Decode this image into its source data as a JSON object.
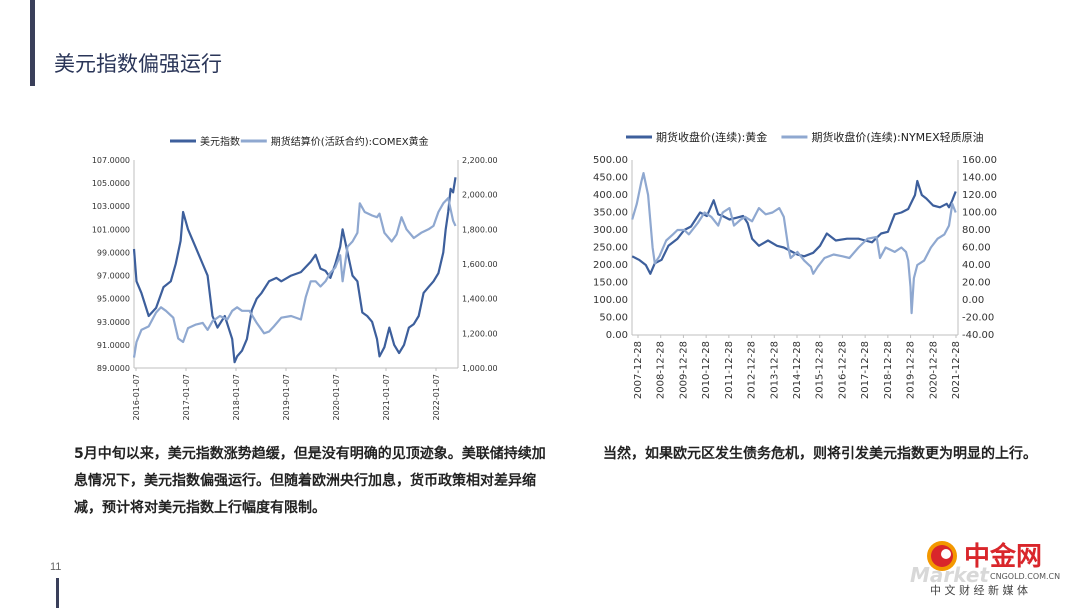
{
  "slide": {
    "title": "美元指数偏强运行",
    "page_number": "11",
    "paragraph_left": "5月中旬以来，美元指数涨势趋缓，但是没有明确的见顶迹象。美联储持续加息情况下，美元指数偏强运行。但随着欧洲央行加息，货币政策相对差异缩减，预计将对美元指数上行幅度有限制。",
    "paragraph_right": "当然，如果欧元区发生债务危机，则将引发美元指数更为明显的上行。"
  },
  "logo": {
    "text_main": "中金网",
    "text_url": "CNGOLD.COM.CN",
    "text_sub": "中 文 财 经 新 媒 体",
    "text_wm": "Market",
    "colors": {
      "red": "#d9262b",
      "orange": "#f39800",
      "wm": "#d8d8d8"
    }
  },
  "colors": {
    "dark_series": "#3d5f9c",
    "light_series": "#8fa8d0",
    "axis": "#bfbfbf"
  },
  "chart_data": [
    {
      "type": "line",
      "legend_position": "top",
      "grid": false,
      "x_tick_labels": [
        "2016-01-07",
        "2017-01-07",
        "2018-01-07",
        "2019-01-07",
        "2020-01-07",
        "2021-01-07",
        "2022-01-07"
      ],
      "x_range": [
        2016.0,
        2022.6
      ],
      "y_left": {
        "ticks": [
          "107.0000",
          "105.0000",
          "103.0000",
          "101.0000",
          "99.0000",
          "97.0000",
          "95.0000",
          "93.0000",
          "91.0000",
          "89.0000"
        ],
        "range": [
          89,
          107
        ]
      },
      "y_right": {
        "ticks": [
          "2,200.00",
          "2,000.00",
          "1,800.00",
          "1,600.00",
          "1,400.00",
          "1,200.00",
          "1,000.00"
        ],
        "range": [
          1000,
          2200
        ]
      },
      "series": [
        {
          "name": "美元指数",
          "axis": "left",
          "color": "#3d5f9c",
          "x": [
            2016.0,
            2016.05,
            2016.15,
            2016.3,
            2016.45,
            2016.6,
            2016.75,
            2016.85,
            2016.95,
            2017.0,
            2017.1,
            2017.25,
            2017.4,
            2017.5,
            2017.6,
            2017.7,
            2017.85,
            2018.0,
            2018.05,
            2018.1,
            2018.2,
            2018.3,
            2018.4,
            2018.5,
            2018.6,
            2018.75,
            2018.9,
            2019.0,
            2019.2,
            2019.4,
            2019.6,
            2019.7,
            2019.8,
            2019.9,
            2020.0,
            2020.1,
            2020.2,
            2020.25,
            2020.35,
            2020.45,
            2020.55,
            2020.65,
            2020.75,
            2020.85,
            2020.95,
            2021.0,
            2021.1,
            2021.2,
            2021.3,
            2021.4,
            2021.5,
            2021.6,
            2021.7,
            2021.8,
            2021.9,
            2022.0,
            2022.1,
            2022.2,
            2022.3,
            2022.35,
            2022.4,
            2022.45,
            2022.5,
            2022.55
          ],
          "y": [
            99.3,
            96.5,
            95.5,
            93.5,
            94.2,
            96.0,
            96.5,
            98.0,
            100.0,
            102.5,
            101.0,
            99.5,
            98.0,
            97.0,
            93.5,
            92.5,
            93.5,
            91.5,
            89.5,
            90.0,
            90.5,
            91.5,
            94.0,
            95.0,
            95.5,
            96.5,
            96.8,
            96.5,
            97.0,
            97.3,
            98.2,
            98.8,
            97.6,
            97.4,
            96.8,
            98.0,
            99.5,
            101.0,
            99.0,
            97.0,
            96.5,
            93.8,
            93.5,
            93.0,
            91.5,
            90.0,
            90.8,
            92.5,
            91.0,
            90.3,
            91.0,
            92.5,
            92.8,
            93.5,
            95.5,
            96.0,
            96.5,
            97.2,
            99.0,
            101.0,
            102.5,
            104.5,
            104.2,
            105.5
          ]
        },
        {
          "name": "期货结算价(活跃合约):COMEX黄金",
          "axis": "right",
          "color": "#8fa8d0",
          "x": [
            2016.0,
            2016.05,
            2016.15,
            2016.3,
            2016.45,
            2016.55,
            2016.65,
            2016.8,
            2016.9,
            2017.0,
            2017.1,
            2017.25,
            2017.4,
            2017.5,
            2017.6,
            2017.75,
            2017.9,
            2018.0,
            2018.1,
            2018.2,
            2018.35,
            2018.5,
            2018.65,
            2018.75,
            2018.85,
            2019.0,
            2019.2,
            2019.4,
            2019.5,
            2019.6,
            2019.7,
            2019.8,
            2019.9,
            2020.0,
            2020.1,
            2020.2,
            2020.25,
            2020.35,
            2020.45,
            2020.55,
            2020.6,
            2020.7,
            2020.85,
            2020.95,
            2021.0,
            2021.1,
            2021.25,
            2021.35,
            2021.45,
            2021.55,
            2021.7,
            2021.85,
            2022.0,
            2022.1,
            2022.2,
            2022.3,
            2022.4,
            2022.5,
            2022.55
          ],
          "y": [
            1060,
            1150,
            1220,
            1240,
            1320,
            1350,
            1330,
            1290,
            1170,
            1150,
            1230,
            1250,
            1260,
            1220,
            1270,
            1300,
            1280,
            1330,
            1350,
            1330,
            1330,
            1260,
            1200,
            1210,
            1240,
            1290,
            1300,
            1280,
            1410,
            1500,
            1500,
            1470,
            1500,
            1550,
            1580,
            1650,
            1500,
            1700,
            1730,
            1780,
            1950,
            1900,
            1880,
            1870,
            1890,
            1780,
            1730,
            1770,
            1870,
            1800,
            1750,
            1780,
            1800,
            1820,
            1900,
            1950,
            1980,
            1850,
            1820
          ]
        }
      ]
    },
    {
      "type": "line",
      "legend_position": "top",
      "grid": false,
      "x_tick_labels": [
        "2007-12-28",
        "2008-12-28",
        "2009-12-28",
        "2010-12-28",
        "2011-12-28",
        "2012-12-28",
        "2013-12-28",
        "2014-12-28",
        "2015-12-28",
        "2016-12-28",
        "2017-12-28",
        "2018-12-28",
        "2019-12-28",
        "2020-12-28",
        "2021-12-28"
      ],
      "x_range": [
        2007.99,
        2022.4
      ],
      "y_left": {
        "ticks": [
          "500.00",
          "450.00",
          "400.00",
          "350.00",
          "300.00",
          "250.00",
          "200.00",
          "150.00",
          "100.00",
          "50.00",
          "0.00"
        ],
        "range": [
          0,
          500
        ]
      },
      "y_right": {
        "ticks": [
          "160.00",
          "140.00",
          "120.00",
          "100.00",
          "80.00",
          "60.00",
          "40.00",
          "20.00",
          "0.00",
          "-20.00",
          "-40.00"
        ],
        "range": [
          -40,
          160
        ]
      },
      "series": [
        {
          "name": "期货收盘价(连续):黄金",
          "axis": "left",
          "color": "#3d5f9c",
          "x": [
            2008.0,
            2008.3,
            2008.6,
            2008.8,
            2009.0,
            2009.3,
            2009.6,
            2010.0,
            2010.3,
            2010.6,
            2010.9,
            2011.0,
            2011.3,
            2011.6,
            2011.8,
            2012.0,
            2012.3,
            2012.6,
            2012.9,
            2013.1,
            2013.3,
            2013.6,
            2014.0,
            2014.4,
            2014.7,
            2015.0,
            2015.3,
            2015.6,
            2016.0,
            2016.3,
            2016.6,
            2017.0,
            2017.5,
            2018.0,
            2018.3,
            2018.6,
            2019.0,
            2019.3,
            2019.6,
            2019.9,
            2020.2,
            2020.5,
            2020.6,
            2020.8,
            2021.0,
            2021.3,
            2021.6,
            2021.9,
            2022.0,
            2022.15,
            2022.3
          ],
          "y": [
            225,
            215,
            200,
            175,
            205,
            215,
            255,
            275,
            300,
            310,
            340,
            350,
            340,
            385,
            345,
            340,
            330,
            335,
            340,
            320,
            275,
            255,
            270,
            255,
            250,
            240,
            230,
            225,
            235,
            255,
            290,
            270,
            275,
            275,
            270,
            265,
            290,
            295,
            345,
            350,
            360,
            400,
            440,
            400,
            390,
            370,
            365,
            375,
            365,
            385,
            410
          ]
        },
        {
          "name": "期货收盘价(连续):NYMEX轻质原油",
          "axis": "right",
          "color": "#8fa8d0",
          "x": [
            2008.0,
            2008.2,
            2008.4,
            2008.5,
            2008.7,
            2008.9,
            2009.0,
            2009.2,
            2009.5,
            2009.8,
            2010.0,
            2010.3,
            2010.5,
            2010.9,
            2011.2,
            2011.5,
            2011.8,
            2012.0,
            2012.3,
            2012.5,
            2012.8,
            2013.0,
            2013.3,
            2013.6,
            2013.9,
            2014.2,
            2014.5,
            2014.7,
            2014.9,
            2015.0,
            2015.3,
            2015.6,
            2015.9,
            2016.0,
            2016.2,
            2016.5,
            2016.9,
            2017.3,
            2017.6,
            2018.0,
            2018.4,
            2018.8,
            2018.95,
            2019.2,
            2019.6,
            2019.9,
            2020.1,
            2020.2,
            2020.3,
            2020.35,
            2020.45,
            2020.6,
            2020.9,
            2021.2,
            2021.5,
            2021.8,
            2022.0,
            2022.15,
            2022.3
          ],
          "y": [
            92,
            110,
            135,
            145,
            120,
            60,
            42,
            50,
            68,
            75,
            80,
            80,
            75,
            88,
            100,
            95,
            85,
            100,
            105,
            85,
            92,
            95,
            90,
            105,
            98,
            100,
            105,
            95,
            60,
            48,
            55,
            45,
            38,
            30,
            38,
            48,
            52,
            50,
            48,
            60,
            70,
            72,
            48,
            60,
            55,
            60,
            55,
            45,
            15,
            -15,
            25,
            40,
            45,
            60,
            70,
            75,
            85,
            110,
            100
          ]
        }
      ]
    }
  ]
}
